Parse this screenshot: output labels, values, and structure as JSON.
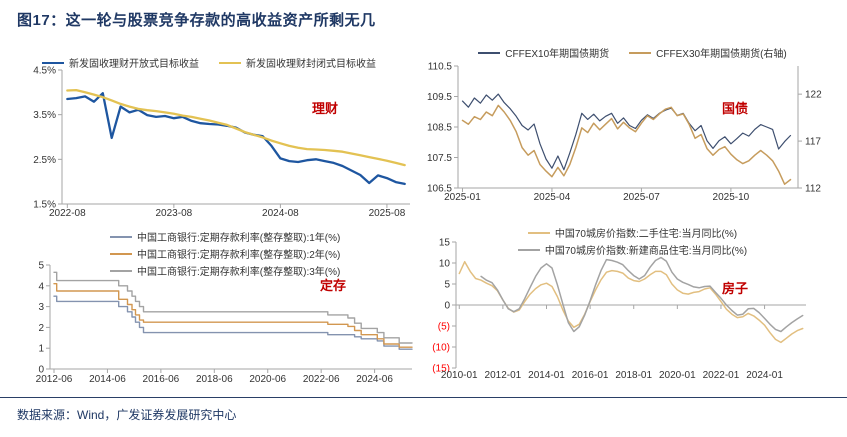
{
  "title": "图17：这一轮与股票竞争存款的高收益资产所剩无几",
  "source": "数据来源：Wind，广发证券发展研究中心",
  "colors": {
    "title_navy": "#1F3864",
    "tag_red": "#C00000",
    "negative_tick_red": "#FF0000",
    "axis_gray": "#A6A6A6"
  },
  "chart_data": [
    {
      "type": "line",
      "annotation": "理财",
      "legend": [
        [
          {
            "label": "新发固收理财开放式目标收益",
            "color": "#1E56A0"
          },
          {
            "label": "新发固收理财封闭式目标收益",
            "color": "#E3C253"
          }
        ]
      ],
      "x_axis": {
        "min": -0.6,
        "max": 38.6,
        "ticks": [
          {
            "v": 0,
            "label": "2022-08"
          },
          {
            "v": 12,
            "label": "2023-08"
          },
          {
            "v": 24,
            "label": "2024-08"
          },
          {
            "v": 36,
            "label": "2025-08"
          }
        ]
      },
      "y_axis": {
        "min": 1.5,
        "max": 4.5,
        "ticks": [
          {
            "v": 1.5,
            "label": "1.5%"
          },
          {
            "v": 2.5,
            "label": "2.5%"
          },
          {
            "v": 3.5,
            "label": "3.5%"
          },
          {
            "v": 4.5,
            "label": "4.5%"
          }
        ]
      },
      "series": [
        {
          "name": "open-end-yield",
          "color": "#1E56A0",
          "width": 2.3,
          "x_start": 0,
          "x_step": 1,
          "y": [
            3.85,
            3.87,
            3.91,
            3.79,
            3.98,
            2.98,
            3.68,
            3.55,
            3.61,
            3.49,
            3.45,
            3.47,
            3.42,
            3.45,
            3.36,
            3.31,
            3.29,
            3.28,
            3.25,
            3.21,
            3.1,
            3.05,
            3.02,
            2.8,
            2.52,
            2.46,
            2.44,
            2.48,
            2.5,
            2.46,
            2.42,
            2.35,
            2.25,
            2.15,
            1.97,
            2.14,
            2.08,
            1.99,
            1.95
          ]
        },
        {
          "name": "closed-end-yield",
          "color": "#E3C253",
          "width": 2.3,
          "x_start": 0,
          "x_step": 1,
          "y": [
            4.04,
            4.05,
            4.0,
            3.95,
            3.89,
            3.82,
            3.74,
            3.68,
            3.63,
            3.6,
            3.58,
            3.55,
            3.52,
            3.48,
            3.45,
            3.41,
            3.37,
            3.32,
            3.27,
            3.19,
            3.11,
            3.05,
            2.99,
            2.92,
            2.86,
            2.8,
            2.76,
            2.73,
            2.72,
            2.71,
            2.69,
            2.67,
            2.63,
            2.59,
            2.55,
            2.51,
            2.47,
            2.42,
            2.37
          ]
        }
      ]
    },
    {
      "type": "line",
      "annotation": "国债",
      "legend": [
        [
          {
            "label": "CFFEX10年期国债期货",
            "color": "#3E4F6F"
          },
          {
            "label": "CFFEX30年期国债期货(右轴)",
            "color": "#C69C5D"
          }
        ]
      ],
      "x_axis": {
        "min": -0.15,
        "max": 11.25,
        "ticks": [
          {
            "v": 0,
            "label": "2025-01"
          },
          {
            "v": 3,
            "label": "2025-04"
          },
          {
            "v": 6,
            "label": "2025-07"
          },
          {
            "v": 9,
            "label": "2025-10"
          }
        ]
      },
      "y_axis": {
        "min": 106.5,
        "max": 110.5,
        "ticks": [
          {
            "v": 106.5,
            "label": "106.5"
          },
          {
            "v": 107.5,
            "label": "107.5"
          },
          {
            "v": 108.5,
            "label": "108.5"
          },
          {
            "v": 109.5,
            "label": "109.5"
          },
          {
            "v": 110.5,
            "label": "110.5"
          }
        ]
      },
      "y2_axis": {
        "min": 112,
        "max": 125,
        "ticks": [
          {
            "v": 112,
            "label": "112"
          },
          {
            "v": 117,
            "label": "117"
          },
          {
            "v": 122,
            "label": "122"
          }
        ]
      },
      "series": [
        {
          "name": "cffex-10y",
          "color": "#3E4F6F",
          "width": 1.2,
          "x_start": 0,
          "x_step": 0.2,
          "y": [
            109.35,
            109.15,
            109.45,
            109.28,
            109.55,
            109.38,
            109.58,
            109.3,
            109.1,
            108.85,
            108.55,
            108.4,
            108.6,
            107.95,
            107.45,
            107.15,
            107.55,
            107.1,
            107.65,
            108.25,
            108.95,
            108.75,
            108.92,
            108.7,
            108.85,
            108.95,
            108.62,
            108.8,
            108.55,
            108.45,
            108.72,
            108.9,
            108.78,
            108.95,
            109.05,
            109.12,
            108.88,
            108.95,
            108.62,
            108.38,
            108.55,
            108.05,
            107.8,
            108.05,
            108.18,
            107.95,
            108.12,
            108.3,
            108.2,
            108.42,
            108.58,
            108.5,
            108.42,
            107.78,
            108.02,
            108.22
          ]
        },
        {
          "name": "cffex-30y",
          "color": "#C69C5D",
          "width": 1.5,
          "axis": "y2",
          "x_start": 0,
          "x_step": 0.2,
          "y": [
            119.2,
            118.8,
            119.6,
            119.3,
            120.1,
            119.7,
            120.8,
            120.1,
            119.2,
            118.0,
            116.3,
            115.5,
            116.0,
            114.5,
            113.8,
            113.2,
            114.2,
            113.3,
            114.5,
            116.3,
            118.4,
            117.9,
            118.9,
            118.2,
            118.8,
            119.4,
            118.3,
            119.0,
            118.4,
            118.0,
            118.9,
            119.7,
            119.3,
            119.9,
            120.4,
            120.6,
            119.7,
            119.9,
            118.8,
            117.3,
            117.7,
            116.2,
            115.5,
            116.1,
            116.4,
            115.6,
            115.0,
            114.6,
            114.9,
            115.5,
            116.0,
            115.5,
            114.9,
            113.8,
            112.4,
            112.9
          ]
        }
      ]
    },
    {
      "type": "line",
      "annotation": "定存",
      "legend": [
        [
          {
            "label": "中国工商银行:定期存款利率(整存整取):1年(%)",
            "color": "#8493AF"
          }
        ],
        [
          {
            "label": "中国工商银行:定期存款利率(整存整取):2年(%)",
            "color": "#D29750"
          }
        ],
        [
          {
            "label": "中国工商银行:定期存款利率(整存整取):3年(%)",
            "color": "#A3A3A3"
          }
        ]
      ],
      "x_axis": {
        "min": 2012.3,
        "max": 2025.85,
        "ticks": [
          {
            "v": 2012.45,
            "label": "2012-06"
          },
          {
            "v": 2014.45,
            "label": "2014-06"
          },
          {
            "v": 2016.45,
            "label": "2016-06"
          },
          {
            "v": 2018.45,
            "label": "2018-06"
          },
          {
            "v": 2020.45,
            "label": "2020-06"
          },
          {
            "v": 2022.45,
            "label": "2022-06"
          },
          {
            "v": 2024.45,
            "label": "2024-06"
          }
        ]
      },
      "y_axis": {
        "min": 0,
        "max": 5,
        "ticks": [
          {
            "v": 0,
            "label": "0"
          },
          {
            "v": 1,
            "label": "1"
          },
          {
            "v": 2,
            "label": "2"
          },
          {
            "v": 3,
            "label": "3"
          },
          {
            "v": 4,
            "label": "4"
          },
          {
            "v": 5,
            "label": "5"
          }
        ]
      },
      "series": [
        {
          "name": "deposit-1y",
          "color": "#8493AF",
          "width": 1.4,
          "step": true,
          "x": [
            2012.45,
            2012.55,
            2014.87,
            2015.2,
            2015.37,
            2015.5,
            2015.65,
            2015.8,
            2022.7,
            2023.7,
            2023.95,
            2024.55,
            2024.8,
            2025.37
          ],
          "y": [
            3.5,
            3.25,
            3.0,
            2.75,
            2.5,
            2.25,
            2.0,
            1.75,
            1.65,
            1.55,
            1.45,
            1.35,
            1.1,
            0.95
          ]
        },
        {
          "name": "deposit-2y",
          "color": "#D29750",
          "width": 1.4,
          "step": true,
          "x": [
            2012.45,
            2012.55,
            2014.87,
            2015.2,
            2015.37,
            2015.5,
            2015.65,
            2015.8,
            2022.7,
            2023.45,
            2023.7,
            2023.95,
            2024.55,
            2024.8,
            2025.37
          ],
          "y": [
            4.1,
            3.75,
            3.35,
            3.1,
            2.85,
            2.6,
            2.35,
            2.25,
            2.15,
            2.05,
            1.85,
            1.65,
            1.45,
            1.2,
            1.05
          ]
        },
        {
          "name": "deposit-3y",
          "color": "#A3A3A3",
          "width": 1.4,
          "step": true,
          "x": [
            2012.45,
            2012.55,
            2014.87,
            2015.2,
            2015.37,
            2015.5,
            2015.65,
            2015.8,
            2022.7,
            2023.45,
            2023.7,
            2023.95,
            2024.55,
            2024.8,
            2025.37
          ],
          "y": [
            4.65,
            4.25,
            4.0,
            3.75,
            3.5,
            3.25,
            3.0,
            2.75,
            2.6,
            2.45,
            2.2,
            1.95,
            1.75,
            1.5,
            1.25
          ]
        }
      ]
    },
    {
      "type": "line",
      "annotation": "房子",
      "legend": [
        [
          {
            "label": "中国70城房价指数:二手住宅:当月同比(%)",
            "color": "#E2BF80"
          }
        ],
        [
          {
            "label": "中国70城房价指数:新建商品住宅:当月同比(%)",
            "color": "#A3A3A3"
          }
        ]
      ],
      "x_axis": {
        "min": 2009.85,
        "max": 2025.9,
        "at_zero": true,
        "ticks": [
          {
            "v": 2010,
            "label": "2010-01"
          },
          {
            "v": 2012,
            "label": "2012-01"
          },
          {
            "v": 2014,
            "label": "2014-01"
          },
          {
            "v": 2016,
            "label": "2016-01"
          },
          {
            "v": 2018,
            "label": "2018-01"
          },
          {
            "v": 2020,
            "label": "2020-01"
          },
          {
            "v": 2022,
            "label": "2022-01"
          },
          {
            "v": 2024,
            "label": "2024-01"
          }
        ]
      },
      "y_axis": {
        "min": -15,
        "max": 15,
        "ticks": [
          {
            "v": 15,
            "label": "15"
          },
          {
            "v": 10,
            "label": "10"
          },
          {
            "v": 5,
            "label": "5"
          },
          {
            "v": 0,
            "label": "0"
          },
          {
            "v": -5,
            "label": "(5)",
            "color": "#FF0000"
          },
          {
            "v": -10,
            "label": "(10)",
            "color": "#FF0000"
          },
          {
            "v": -15,
            "label": "(15)",
            "color": "#FF0000"
          }
        ]
      },
      "series": [
        {
          "name": "secondhand-home-yoy",
          "color": "#E2BF80",
          "width": 1.5,
          "x_start": 2010.0,
          "x_step": 0.25,
          "y": [
            7.5,
            10.3,
            8.0,
            6.3,
            5.9,
            5.2,
            4.6,
            3.4,
            1.2,
            -0.8,
            -1.7,
            -1.2,
            0.8,
            2.6,
            3.9,
            4.8,
            5.2,
            4.4,
            2.0,
            -1.2,
            -3.8,
            -5.3,
            -4.6,
            -2.2,
            0.8,
            3.6,
            6.0,
            7.8,
            8.2,
            8.0,
            7.6,
            6.4,
            5.8,
            5.6,
            6.2,
            7.2,
            8.0,
            8.0,
            7.2,
            5.0,
            3.6,
            2.8,
            2.6,
            3.0,
            3.2,
            3.8,
            4.1,
            2.6,
            0.8,
            -1.0,
            -2.2,
            -3.0,
            -2.8,
            -2.0,
            -2.6,
            -3.6,
            -4.8,
            -6.6,
            -8.2,
            -8.9,
            -7.9,
            -6.9,
            -6.1,
            -5.6
          ]
        },
        {
          "name": "newhome-yoy",
          "color": "#A3A3A3",
          "width": 1.5,
          "x_start": 2011.0,
          "x_step": 0.25,
          "y": [
            6.8,
            5.9,
            5.3,
            3.6,
            1.2,
            -0.9,
            -1.6,
            -0.9,
            1.5,
            4.2,
            6.8,
            8.8,
            9.8,
            8.8,
            4.8,
            0.2,
            -4.2,
            -6.3,
            -5.2,
            -2.4,
            1.0,
            4.8,
            8.2,
            10.8,
            10.6,
            10.2,
            9.6,
            8.2,
            7.0,
            6.2,
            7.0,
            9.0,
            10.6,
            11.3,
            10.4,
            7.8,
            6.2,
            5.4,
            4.9,
            4.3,
            4.1,
            4.4,
            4.5,
            3.0,
            1.6,
            0.0,
            -1.3,
            -2.4,
            -2.2,
            -0.9,
            -0.8,
            -1.8,
            -3.2,
            -4.6,
            -5.8,
            -6.3,
            -5.2,
            -4.2,
            -3.3,
            -2.5
          ]
        }
      ]
    }
  ]
}
